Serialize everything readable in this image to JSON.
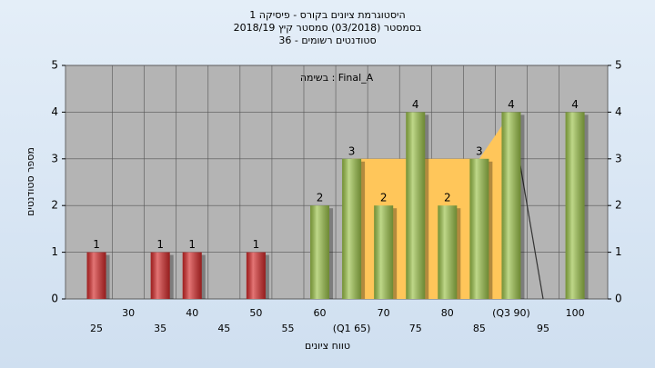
{
  "chart_data": {
    "type": "bar",
    "title": [
      "היסטוגרמת ציונים בקורס - פיסיקה 1",
      "בסמסטר (03/2018) סמסטר קיץ 2018/19",
      "סטודנטים רשומים - 36"
    ],
    "annotation": "בשימה : Final_A",
    "x_label": "טווח ציונים",
    "y_label": "מספר סטודנטים",
    "categories": [
      "25",
      "30",
      "35",
      "40",
      "45",
      "50",
      "55",
      "60",
      "(Q1 65)",
      "70",
      "75",
      "80",
      "85",
      "(Q3 90)",
      "95",
      "100"
    ],
    "values": [
      1,
      0,
      1,
      1,
      0,
      1,
      0,
      2,
      3,
      2,
      4,
      2,
      3,
      4,
      0,
      4
    ],
    "colors": [
      "#d42a2a",
      "#d42a2a",
      "#d42a2a",
      "#d42a2a",
      "#d42a2a",
      "#d42a2a",
      "#d42a2a",
      "#9cc34a",
      "#9cc34a",
      "#9cc34a",
      "#9cc34a",
      "#9cc34a",
      "#9cc34a",
      "#9cc34a",
      "#9cc34a",
      "#9cc34a"
    ],
    "area": {
      "color": "#ffc65a",
      "values": [
        null,
        null,
        null,
        null,
        null,
        null,
        null,
        null,
        3,
        3,
        3,
        3,
        3,
        4,
        null,
        null
      ]
    },
    "line": {
      "color": "#333333",
      "values": [
        null,
        null,
        null,
        null,
        null,
        null,
        null,
        null,
        null,
        null,
        null,
        null,
        null,
        4,
        0,
        null
      ]
    },
    "ylim": [
      0,
      5
    ],
    "yticks": [
      0,
      1,
      2,
      3,
      4,
      5
    ],
    "y2lim": [
      0,
      5
    ],
    "y2ticks": [
      0,
      1,
      2,
      3,
      4,
      5
    ],
    "grid": true
  }
}
